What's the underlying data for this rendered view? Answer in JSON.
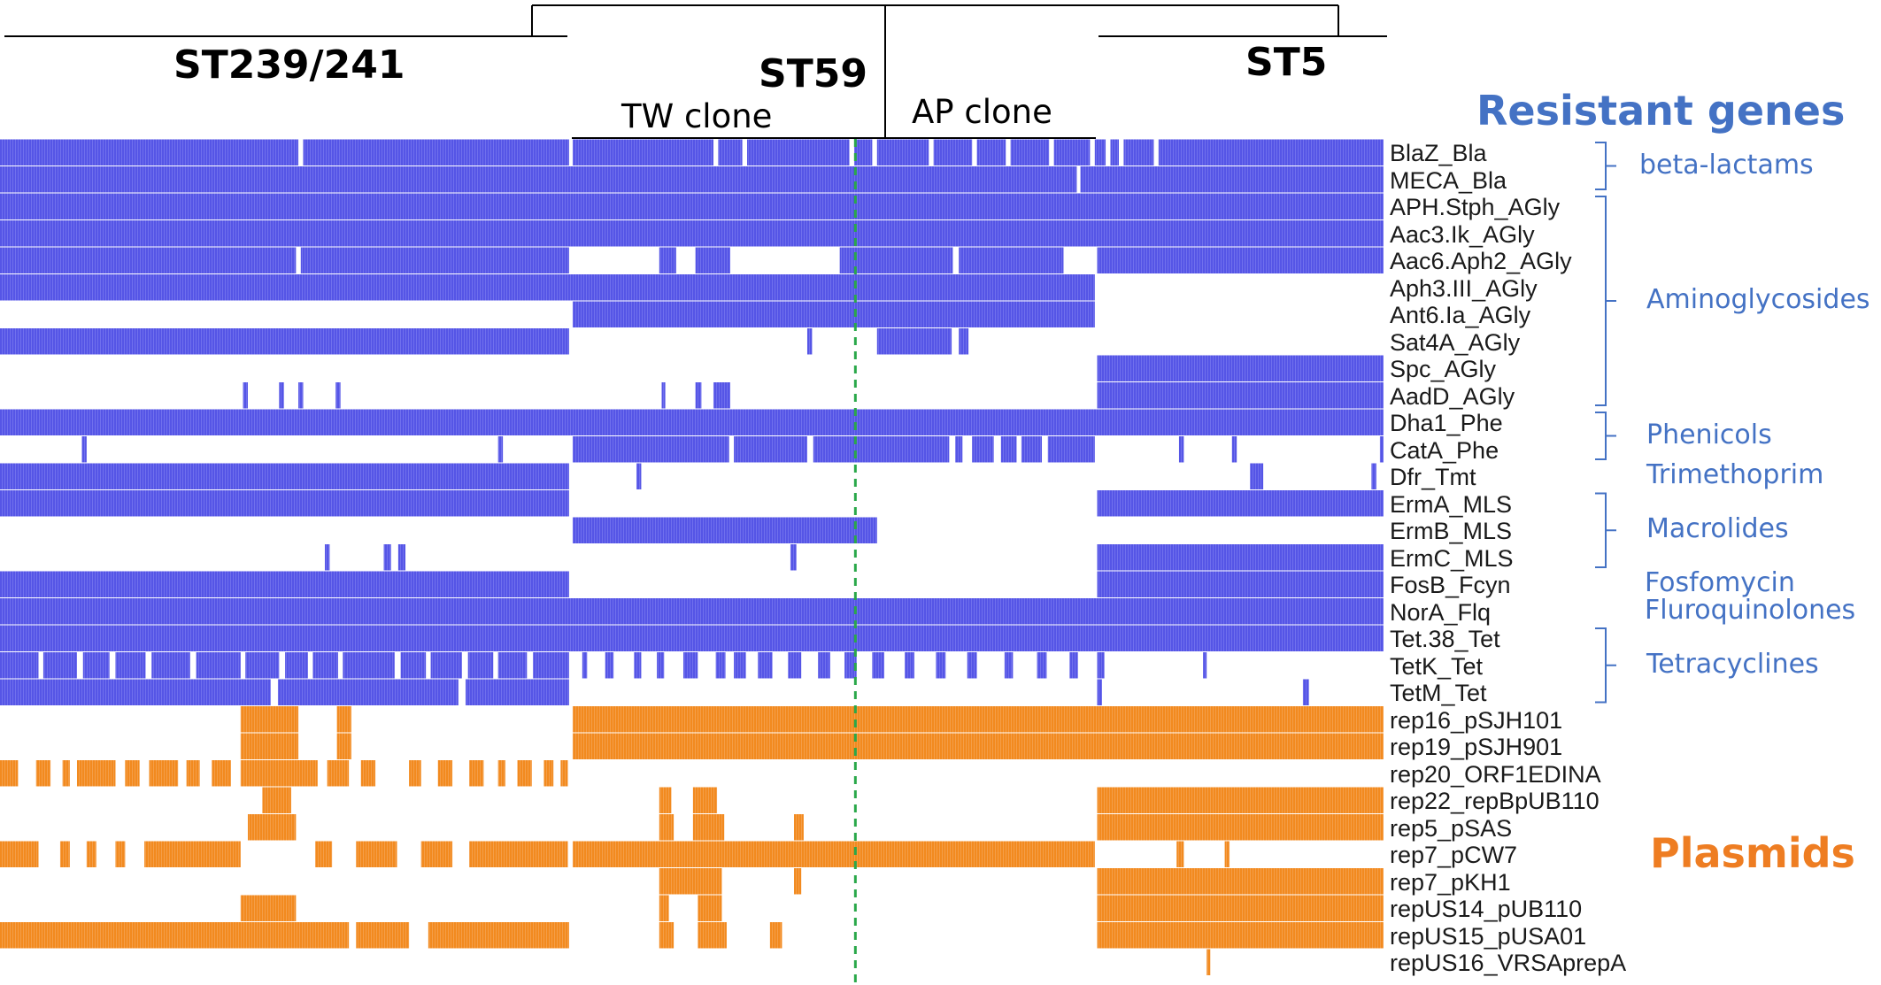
{
  "colors": {
    "resistance": "#5555e6",
    "plasmid": "#f28a1f",
    "divider": "#2aa84a",
    "group_text": "#4472c4",
    "plasmid_title": "#ee7d22"
  },
  "clades": {
    "st239": "ST239/241",
    "st59": "ST59",
    "st5": "ST5",
    "tw_clone": "TW clone",
    "ap_clone": "AP clone"
  },
  "sections": {
    "resistant": "Resistant genes",
    "plasmids": "Plasmids"
  },
  "chart_data": {
    "type": "heatmap",
    "title": "",
    "x_axis": "isolates ordered by phylogeny (no tick labels)",
    "x_domain": [
      0,
      1150
    ],
    "clade_spans": [
      {
        "name": "ST239/241",
        "from": 0,
        "to": 473
      },
      {
        "name": "ST59 / TW clone",
        "from": 476,
        "to": 730
      },
      {
        "name": "ST59 / AP clone",
        "from": 730,
        "to": 912
      },
      {
        "name": "ST5",
        "from": 912,
        "to": 1150
      }
    ],
    "reference_line_x": 711,
    "legend": [
      "Resistant genes",
      "Plasmids"
    ],
    "rows": [
      {
        "label": "BlaZ_Bla",
        "cat": "res",
        "presence": [
          [
            0,
            248
          ],
          [
            252,
            473
          ],
          [
            476,
            593
          ],
          [
            597,
            617
          ],
          [
            621,
            706
          ],
          [
            710,
            725
          ],
          [
            729,
            772
          ],
          [
            776,
            808
          ],
          [
            812,
            836
          ],
          [
            840,
            872
          ],
          [
            876,
            906
          ],
          [
            910,
            919
          ],
          [
            923,
            930
          ],
          [
            934,
            959
          ],
          [
            963,
            1150
          ]
        ]
      },
      {
        "label": "MECA_Bla",
        "cat": "res",
        "presence": [
          [
            0,
            895
          ],
          [
            898,
            1150
          ]
        ]
      },
      {
        "label": "APH.Stph_AGly",
        "cat": "res",
        "presence": [
          [
            0,
            1150
          ]
        ]
      },
      {
        "label": "Aac3.Ik_AGly",
        "cat": "res",
        "presence": [
          [
            0,
            1150
          ]
        ]
      },
      {
        "label": "Aac6.Aph2_AGly",
        "cat": "res",
        "presence": [
          [
            0,
            246
          ],
          [
            250,
            473
          ],
          [
            548,
            562
          ],
          [
            578,
            607
          ],
          [
            698,
            792
          ],
          [
            797,
            884
          ],
          [
            912,
            1150
          ]
        ]
      },
      {
        "label": "Aph3.III_AGly",
        "cat": "res",
        "presence": [
          [
            0,
            910
          ]
        ]
      },
      {
        "label": "Ant6.Ia_AGly",
        "cat": "res",
        "presence": [
          [
            476,
            910
          ]
        ]
      },
      {
        "label": "Sat4A_AGly",
        "cat": "res",
        "presence": [
          [
            0,
            473
          ],
          [
            671,
            675
          ],
          [
            729,
            791
          ],
          [
            797,
            805
          ]
        ]
      },
      {
        "label": "Spc_AGly",
        "cat": "res",
        "presence": [
          [
            912,
            1150
          ]
        ]
      },
      {
        "label": "AadD_AGly",
        "cat": "res",
        "presence": [
          [
            202,
            206
          ],
          [
            232,
            236
          ],
          [
            248,
            252
          ],
          [
            279,
            283
          ],
          [
            550,
            553
          ],
          [
            578,
            583
          ],
          [
            593,
            607
          ],
          [
            912,
            1150
          ]
        ]
      },
      {
        "label": "Dha1_Phe",
        "cat": "res",
        "presence": [
          [
            0,
            1150
          ]
        ]
      },
      {
        "label": "CatA_Phe",
        "cat": "res",
        "presence": [
          [
            68,
            72
          ],
          [
            414,
            418
          ],
          [
            476,
            606
          ],
          [
            610,
            671
          ],
          [
            676,
            789
          ],
          [
            794,
            800
          ],
          [
            808,
            826
          ],
          [
            832,
            845
          ],
          [
            849,
            866
          ],
          [
            871,
            910
          ],
          [
            980,
            984
          ],
          [
            1024,
            1028
          ],
          [
            1147,
            1150
          ]
        ]
      },
      {
        "label": "Dfr_Tmt",
        "cat": "res",
        "presence": [
          [
            0,
            473
          ],
          [
            529,
            533
          ],
          [
            1039,
            1050
          ],
          [
            1140,
            1144
          ]
        ]
      },
      {
        "label": "ErmA_MLS",
        "cat": "res",
        "presence": [
          [
            0,
            473
          ],
          [
            912,
            1150
          ]
        ]
      },
      {
        "label": "ErmB_MLS",
        "cat": "res",
        "presence": [
          [
            476,
            729
          ]
        ]
      },
      {
        "label": "ErmC_MLS",
        "cat": "res",
        "presence": [
          [
            270,
            274
          ],
          [
            319,
            325
          ],
          [
            331,
            337
          ],
          [
            657,
            662
          ],
          [
            912,
            1150
          ]
        ]
      },
      {
        "label": "FosB_Fcyn",
        "cat": "res",
        "presence": [
          [
            0,
            473
          ],
          [
            912,
            1150
          ]
        ]
      },
      {
        "label": "NorA_Flq",
        "cat": "res",
        "presence": [
          [
            0,
            1150
          ]
        ]
      },
      {
        "label": "Tet.38_Tet",
        "cat": "res",
        "presence": [
          [
            0,
            1150
          ]
        ]
      },
      {
        "label": "TetK_Tet",
        "cat": "res",
        "presence": [
          [
            0,
            32
          ],
          [
            36,
            64
          ],
          [
            69,
            91
          ],
          [
            96,
            121
          ],
          [
            126,
            158
          ],
          [
            163,
            200
          ],
          [
            204,
            232
          ],
          [
            237,
            256
          ],
          [
            260,
            281
          ],
          [
            285,
            328
          ],
          [
            333,
            354
          ],
          [
            358,
            384
          ],
          [
            389,
            410
          ],
          [
            414,
            438
          ],
          [
            443,
            473
          ],
          [
            484,
            488
          ],
          [
            503,
            510
          ],
          [
            527,
            533
          ],
          [
            546,
            552
          ],
          [
            568,
            580
          ],
          [
            595,
            603
          ],
          [
            610,
            620
          ],
          [
            630,
            642
          ],
          [
            655,
            666
          ],
          [
            680,
            690
          ],
          [
            702,
            712
          ],
          [
            725,
            735
          ],
          [
            752,
            760
          ],
          [
            778,
            786
          ],
          [
            804,
            812
          ],
          [
            835,
            842
          ],
          [
            862,
            870
          ],
          [
            889,
            896
          ],
          [
            912,
            918
          ],
          [
            1000,
            1003
          ]
        ]
      },
      {
        "label": "TetM_Tet",
        "cat": "res",
        "presence": [
          [
            0,
            225
          ],
          [
            231,
            381
          ],
          [
            387,
            473
          ],
          [
            912,
            916
          ],
          [
            1083,
            1088
          ]
        ]
      },
      {
        "label": "rep16_pSJH101",
        "cat": "plas",
        "presence": [
          [
            200,
            248
          ],
          [
            280,
            292
          ],
          [
            476,
            1150
          ]
        ]
      },
      {
        "label": "rep19_pSJH901",
        "cat": "plas",
        "presence": [
          [
            200,
            248
          ],
          [
            280,
            292
          ],
          [
            476,
            1150
          ]
        ]
      },
      {
        "label": "rep20_ORF1EDINA",
        "cat": "plas",
        "presence": [
          [
            0,
            15
          ],
          [
            30,
            42
          ],
          [
            52,
            58
          ],
          [
            64,
            96
          ],
          [
            104,
            116
          ],
          [
            124,
            148
          ],
          [
            155,
            166
          ],
          [
            176,
            192
          ],
          [
            200,
            264
          ],
          [
            272,
            290
          ],
          [
            300,
            312
          ],
          [
            340,
            350
          ],
          [
            364,
            376
          ],
          [
            390,
            402
          ],
          [
            414,
            420
          ],
          [
            430,
            442
          ],
          [
            452,
            460
          ],
          [
            466,
            472
          ]
        ]
      },
      {
        "label": "rep22_repBpUB110",
        "cat": "plas",
        "presence": [
          [
            218,
            242
          ],
          [
            548,
            558
          ],
          [
            576,
            596
          ],
          [
            912,
            1150
          ]
        ]
      },
      {
        "label": "rep5_pSAS",
        "cat": "plas",
        "presence": [
          [
            206,
            246
          ],
          [
            548,
            560
          ],
          [
            576,
            602
          ],
          [
            660,
            668
          ],
          [
            912,
            1150
          ]
        ]
      },
      {
        "label": "rep7_pCW7",
        "cat": "plas",
        "presence": [
          [
            0,
            32
          ],
          [
            50,
            58
          ],
          [
            72,
            80
          ],
          [
            96,
            104
          ],
          [
            120,
            200
          ],
          [
            262,
            276
          ],
          [
            296,
            330
          ],
          [
            350,
            376
          ],
          [
            390,
            472
          ],
          [
            476,
            910
          ],
          [
            978,
            984
          ],
          [
            1018,
            1022
          ]
        ]
      },
      {
        "label": "rep7_pKH1",
        "cat": "plas",
        "presence": [
          [
            548,
            600
          ],
          [
            660,
            666
          ],
          [
            912,
            1150
          ]
        ]
      },
      {
        "label": "repUS14_pUB110",
        "cat": "plas",
        "presence": [
          [
            200,
            246
          ],
          [
            548,
            556
          ],
          [
            580,
            600
          ],
          [
            912,
            1150
          ]
        ]
      },
      {
        "label": "repUS15_pUSA01",
        "cat": "plas",
        "presence": [
          [
            0,
            290
          ],
          [
            296,
            340
          ],
          [
            356,
            473
          ],
          [
            548,
            560
          ],
          [
            580,
            604
          ],
          [
            640,
            650
          ],
          [
            912,
            1150
          ]
        ]
      },
      {
        "label": "repUS16_VRSAprepA",
        "cat": "plas",
        "presence": [
          [
            1003,
            1006
          ]
        ]
      }
    ],
    "groups": [
      {
        "label": "beta-lactams",
        "rows": [
          0,
          1
        ]
      },
      {
        "label": "Aminoglycosides",
        "rows": [
          2,
          9
        ]
      },
      {
        "label": "Phenicols",
        "rows": [
          10,
          11
        ]
      },
      {
        "label": "Trimethoprim",
        "rows": [
          12,
          12
        ]
      },
      {
        "label": "Macrolides",
        "rows": [
          13,
          15
        ]
      },
      {
        "label": "Fosfomycin",
        "rows": [
          16,
          16
        ]
      },
      {
        "label": "Fluroquinolones",
        "rows": [
          17,
          17
        ]
      },
      {
        "label": "Tetracyclines",
        "rows": [
          18,
          20
        ]
      }
    ]
  }
}
